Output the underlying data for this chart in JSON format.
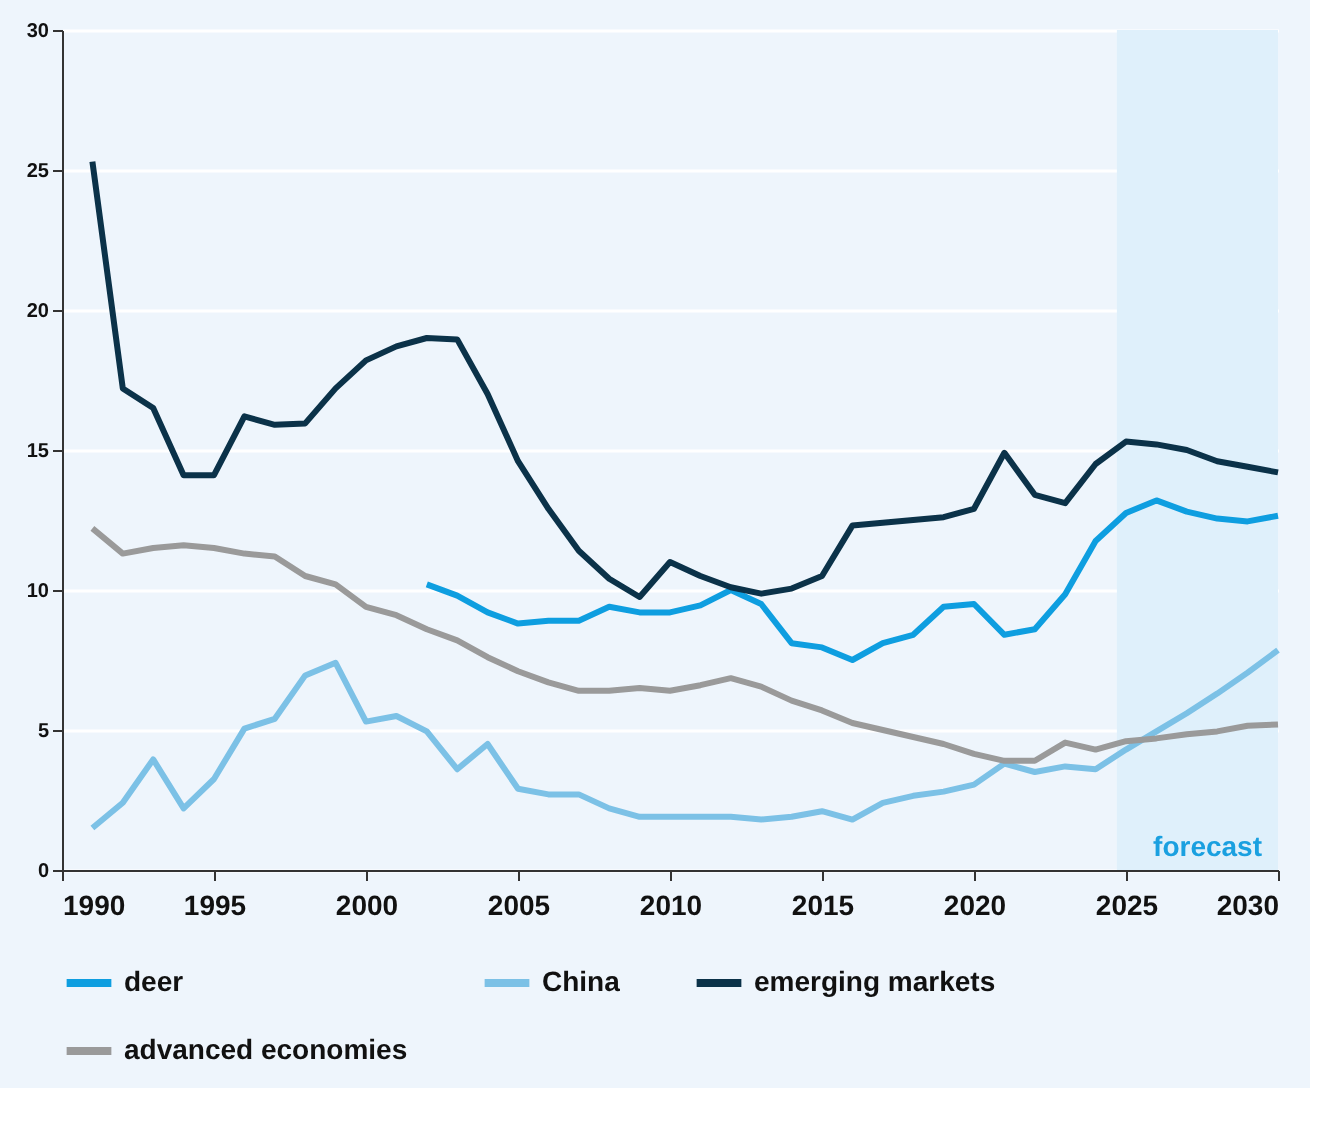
{
  "chart_data": {
    "type": "line",
    "x": [
      1991,
      1992,
      1993,
      1994,
      1995,
      1996,
      1997,
      1998,
      1999,
      2000,
      2001,
      2002,
      2003,
      2004,
      2005,
      2006,
      2007,
      2008,
      2009,
      2010,
      2011,
      2012,
      2013,
      2014,
      2015,
      2016,
      2017,
      2018,
      2019,
      2020,
      2021,
      2022,
      2023,
      2024,
      2025,
      2026,
      2027,
      2028,
      2029,
      2030
    ],
    "series": [
      {
        "name": "deer",
        "color": "#0e9ee0",
        "values": [
          null,
          null,
          null,
          null,
          null,
          null,
          null,
          null,
          null,
          null,
          null,
          10.2,
          9.8,
          9.2,
          8.8,
          8.9,
          8.9,
          9.4,
          9.2,
          9.2,
          9.45,
          10.0,
          9.5,
          8.1,
          7.95,
          7.5,
          8.1,
          8.4,
          9.4,
          9.5,
          8.4,
          8.6,
          9.85,
          11.75,
          12.75,
          13.2,
          12.8,
          12.55,
          12.45,
          12.65
        ]
      },
      {
        "name": "China",
        "color": "#7cc1e6",
        "values": [
          1.5,
          2.4,
          3.95,
          2.2,
          3.25,
          5.05,
          5.4,
          6.95,
          7.4,
          5.3,
          5.5,
          4.95,
          3.6,
          4.5,
          2.9,
          2.7,
          2.7,
          2.2,
          1.9,
          1.9,
          1.9,
          1.9,
          1.8,
          1.9,
          2.1,
          1.8,
          2.4,
          2.65,
          2.8,
          3.05,
          3.8,
          3.5,
          3.7,
          3.6,
          4.3,
          4.95,
          5.6,
          6.3,
          7.05,
          7.85
        ]
      },
      {
        "name": "emerging markets",
        "color": "#0b3249",
        "values": [
          25.3,
          17.2,
          16.5,
          14.1,
          14.1,
          16.2,
          15.9,
          15.95,
          17.2,
          18.2,
          18.7,
          19.0,
          18.95,
          17.0,
          14.6,
          12.9,
          11.4,
          10.4,
          9.75,
          11.0,
          10.5,
          10.1,
          9.87,
          10.05,
          10.5,
          12.3,
          12.4,
          12.5,
          12.6,
          12.9,
          14.9,
          13.4,
          13.1,
          14.5,
          15.3,
          15.2,
          15.0,
          14.6,
          14.4,
          14.2
        ]
      },
      {
        "name": "advanced economies",
        "color": "#9a9a9a",
        "values": [
          12.2,
          11.3,
          11.5,
          11.6,
          11.5,
          11.3,
          11.2,
          10.5,
          10.2,
          9.4,
          9.1,
          8.6,
          8.2,
          7.6,
          7.1,
          6.7,
          6.4,
          6.4,
          6.5,
          6.4,
          6.6,
          6.85,
          6.55,
          6.05,
          5.7,
          5.25,
          5.0,
          4.75,
          4.5,
          4.15,
          3.9,
          3.9,
          4.55,
          4.3,
          4.6,
          4.7,
          4.85,
          4.95,
          5.15,
          5.2
        ]
      }
    ],
    "xlim": [
      1990,
      2030
    ],
    "xticks": [
      1990,
      1995,
      2000,
      2005,
      2010,
      2015,
      2020,
      2025,
      2030
    ],
    "ylim": [
      0,
      30
    ],
    "yticks": [
      0,
      5,
      10,
      15,
      20,
      25,
      30
    ],
    "bands": [
      {
        "axis": "x",
        "from": 2024.7,
        "to": 2030,
        "label": "forecast",
        "color": "#dff0fb"
      }
    ],
    "grid": "y",
    "legend": "bottom",
    "marker": "none",
    "line_style": "solid"
  }
}
